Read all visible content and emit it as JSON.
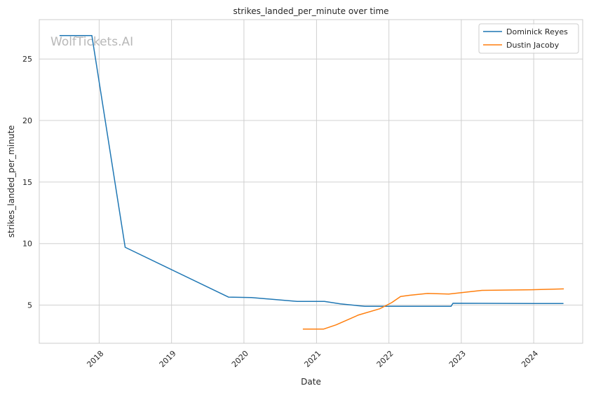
{
  "watermark": "WolfTickets.AI",
  "chart_data": {
    "type": "line",
    "title": "strikes_landed_per_minute over time",
    "xlabel": "Date",
    "ylabel": "strikes_landed_per_minute",
    "xlim": [
      "2017-03-05",
      "2024-09-04"
    ],
    "ylim": [
      1.9,
      28.2
    ],
    "x_ticks": [
      "2018-01-01",
      "2019-01-01",
      "2020-01-01",
      "2021-01-01",
      "2022-01-01",
      "2023-01-01",
      "2024-01-01"
    ],
    "x_tick_labels": [
      "2018",
      "2019",
      "2020",
      "2021",
      "2022",
      "2023",
      "2024"
    ],
    "y_ticks": [
      5,
      10,
      15,
      20,
      25
    ],
    "y_tick_labels": [
      "5",
      "10",
      "15",
      "20",
      "25"
    ],
    "grid": true,
    "legend_position": "top-right",
    "series": [
      {
        "name": "Dominick Reyes",
        "color": "#1f77b4",
        "points": [
          [
            "2017-06-15",
            26.9
          ],
          [
            "2017-11-25",
            26.9
          ],
          [
            "2018-05-12",
            9.7
          ],
          [
            "2019-10-15",
            5.65
          ],
          [
            "2020-02-08",
            5.62
          ],
          [
            "2020-09-25",
            5.3
          ],
          [
            "2021-02-10",
            5.3
          ],
          [
            "2021-05-01",
            5.1
          ],
          [
            "2021-09-01",
            4.9
          ],
          [
            "2022-11-10",
            4.9
          ],
          [
            "2022-11-20",
            5.15
          ],
          [
            "2024-05-30",
            5.13
          ]
        ]
      },
      {
        "name": "Dustin Jacoby",
        "color": "#ff7f0e",
        "points": [
          [
            "2020-10-24",
            3.05
          ],
          [
            "2021-02-05",
            3.05
          ],
          [
            "2021-04-10",
            3.4
          ],
          [
            "2021-08-01",
            4.2
          ],
          [
            "2021-11-15",
            4.7
          ],
          [
            "2022-01-15",
            5.2
          ],
          [
            "2022-03-01",
            5.7
          ],
          [
            "2022-04-15",
            5.8
          ],
          [
            "2022-07-15",
            5.95
          ],
          [
            "2022-10-30",
            5.9
          ],
          [
            "2023-04-15",
            6.2
          ],
          [
            "2023-12-20",
            6.25
          ],
          [
            "2024-06-01",
            6.32
          ]
        ]
      }
    ]
  }
}
